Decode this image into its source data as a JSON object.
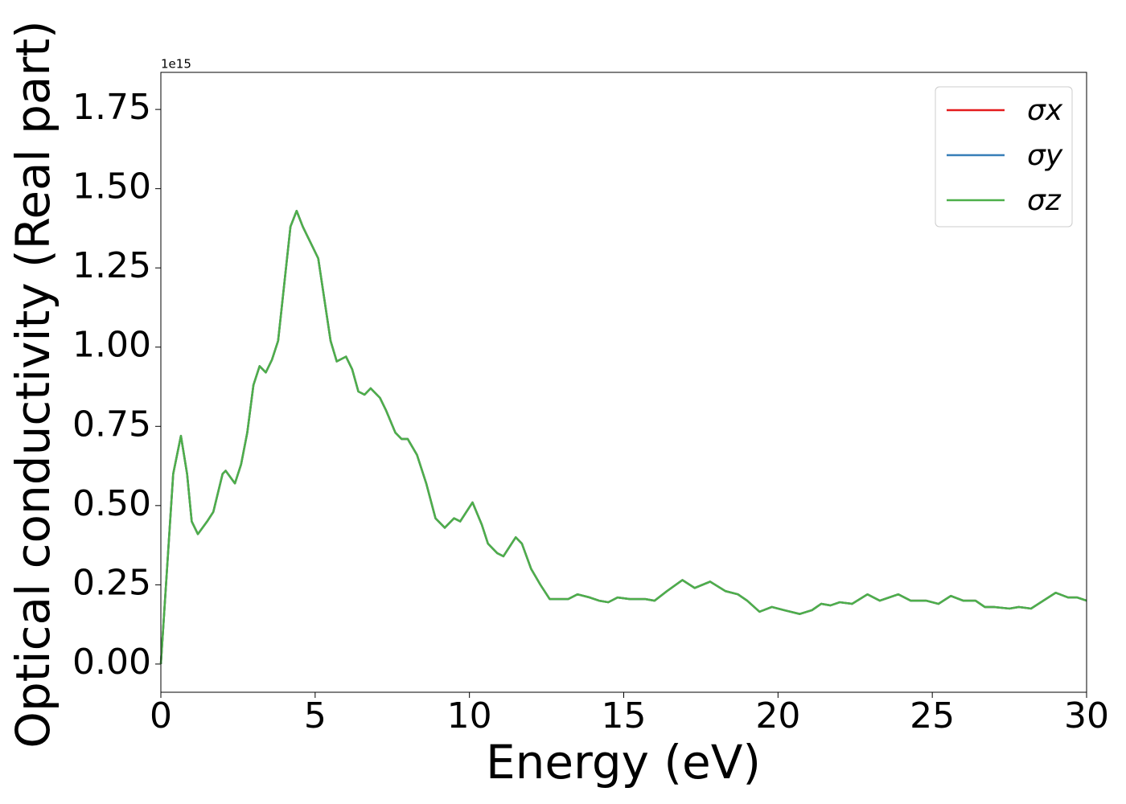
{
  "chart_data": {
    "type": "line",
    "xlabel": "Energy (eV)",
    "ylabel": "Optical conductivity (Real part)",
    "y_offset_label": "1e15",
    "x": [
      0,
      0.2,
      0.4,
      0.65,
      0.85,
      1.0,
      1.2,
      1.5,
      1.7,
      2.0,
      2.1,
      2.4,
      2.6,
      2.8,
      3.0,
      3.2,
      3.4,
      3.6,
      3.8,
      4.0,
      4.2,
      4.4,
      4.6,
      4.8,
      5.1,
      5.3,
      5.5,
      5.7,
      6.0,
      6.2,
      6.4,
      6.6,
      6.8,
      7.1,
      7.3,
      7.6,
      7.8,
      8.0,
      8.3,
      8.6,
      8.9,
      9.2,
      9.5,
      9.7,
      10.1,
      10.4,
      10.6,
      10.9,
      11.1,
      11.3,
      11.5,
      11.7,
      12.0,
      12.3,
      12.6,
      12.9,
      13.2,
      13.5,
      13.9,
      14.2,
      14.5,
      14.8,
      15.2,
      15.7,
      16.0,
      16.4,
      16.9,
      17.3,
      17.8,
      18.3,
      18.7,
      19.0,
      19.4,
      19.8,
      20.2,
      20.7,
      21.1,
      21.4,
      21.7,
      22.0,
      22.4,
      22.9,
      23.3,
      23.9,
      24.3,
      24.8,
      25.2,
      25.6,
      26.0,
      26.4,
      26.7,
      27.0,
      27.5,
      27.8,
      28.2,
      28.6,
      29.0,
      29.4,
      29.7,
      30.0
    ],
    "series": [
      {
        "name": "σx",
        "color": "#e41a1c",
        "values": [
          0,
          0.3,
          0.6,
          0.72,
          0.6,
          0.45,
          0.41,
          0.45,
          0.48,
          0.6,
          0.61,
          0.57,
          0.63,
          0.73,
          0.88,
          0.94,
          0.92,
          0.96,
          1.02,
          1.2,
          1.38,
          1.43,
          1.38,
          1.34,
          1.28,
          1.15,
          1.02,
          0.955,
          0.97,
          0.93,
          0.86,
          0.85,
          0.87,
          0.84,
          0.8,
          0.73,
          0.71,
          0.71,
          0.66,
          0.57,
          0.46,
          0.43,
          0.46,
          0.45,
          0.51,
          0.44,
          0.38,
          0.35,
          0.34,
          0.37,
          0.4,
          0.38,
          0.3,
          0.25,
          0.205,
          0.205,
          0.205,
          0.22,
          0.21,
          0.2,
          0.195,
          0.21,
          0.205,
          0.205,
          0.2,
          0.23,
          0.265,
          0.24,
          0.26,
          0.23,
          0.22,
          0.2,
          0.165,
          0.18,
          0.17,
          0.158,
          0.17,
          0.19,
          0.185,
          0.195,
          0.19,
          0.22,
          0.2,
          0.22,
          0.2,
          0.2,
          0.19,
          0.215,
          0.2,
          0.2,
          0.18,
          0.18,
          0.175,
          0.18,
          0.175,
          0.2,
          0.225,
          0.21,
          0.21,
          0.2
        ]
      },
      {
        "name": "σy",
        "color": "#377eb8",
        "values": [
          0,
          0.3,
          0.6,
          0.72,
          0.6,
          0.45,
          0.41,
          0.45,
          0.48,
          0.6,
          0.61,
          0.57,
          0.63,
          0.73,
          0.88,
          0.94,
          0.92,
          0.96,
          1.02,
          1.2,
          1.38,
          1.43,
          1.38,
          1.34,
          1.28,
          1.15,
          1.02,
          0.955,
          0.97,
          0.93,
          0.86,
          0.85,
          0.87,
          0.84,
          0.8,
          0.73,
          0.71,
          0.71,
          0.66,
          0.57,
          0.46,
          0.43,
          0.46,
          0.45,
          0.51,
          0.44,
          0.38,
          0.35,
          0.34,
          0.37,
          0.4,
          0.38,
          0.3,
          0.25,
          0.205,
          0.205,
          0.205,
          0.22,
          0.21,
          0.2,
          0.195,
          0.21,
          0.205,
          0.205,
          0.2,
          0.23,
          0.265,
          0.24,
          0.26,
          0.23,
          0.22,
          0.2,
          0.165,
          0.18,
          0.17,
          0.158,
          0.17,
          0.19,
          0.185,
          0.195,
          0.19,
          0.22,
          0.2,
          0.22,
          0.2,
          0.2,
          0.19,
          0.215,
          0.2,
          0.2,
          0.18,
          0.18,
          0.175,
          0.18,
          0.175,
          0.2,
          0.225,
          0.21,
          0.21,
          0.2
        ]
      },
      {
        "name": "σz",
        "color": "#4daf4a",
        "values": [
          0,
          0.3,
          0.6,
          0.72,
          0.6,
          0.45,
          0.41,
          0.45,
          0.48,
          0.6,
          0.61,
          0.57,
          0.63,
          0.73,
          0.88,
          0.94,
          0.92,
          0.96,
          1.02,
          1.2,
          1.38,
          1.43,
          1.38,
          1.34,
          1.28,
          1.15,
          1.02,
          0.955,
          0.97,
          0.93,
          0.86,
          0.85,
          0.87,
          0.84,
          0.8,
          0.73,
          0.71,
          0.71,
          0.66,
          0.57,
          0.46,
          0.43,
          0.46,
          0.45,
          0.51,
          0.44,
          0.38,
          0.35,
          0.34,
          0.37,
          0.4,
          0.38,
          0.3,
          0.25,
          0.205,
          0.205,
          0.205,
          0.22,
          0.21,
          0.2,
          0.195,
          0.21,
          0.205,
          0.205,
          0.2,
          0.23,
          0.265,
          0.24,
          0.26,
          0.23,
          0.22,
          0.2,
          0.165,
          0.18,
          0.17,
          0.158,
          0.17,
          0.19,
          0.185,
          0.195,
          0.19,
          0.22,
          0.2,
          0.22,
          0.2,
          0.2,
          0.19,
          0.215,
          0.2,
          0.2,
          0.18,
          0.18,
          0.175,
          0.18,
          0.175,
          0.2,
          0.225,
          0.21,
          0.21,
          0.2
        ]
      }
    ],
    "xlim": [
      0,
      30
    ],
    "xticks": [
      0,
      5,
      10,
      15,
      20,
      25,
      30
    ],
    "ylim": [
      -0.089,
      1.867
    ],
    "yticks": [
      {
        "value": 0,
        "label": "0.00"
      },
      {
        "value": 0.25,
        "label": "0.25"
      },
      {
        "value": 0.5,
        "label": "0.50"
      },
      {
        "value": 0.75,
        "label": "0.75"
      },
      {
        "value": 1,
        "label": "1.00"
      },
      {
        "value": 1.25,
        "label": "1.25"
      },
      {
        "value": 1.5,
        "label": "1.50"
      },
      {
        "value": 1.75,
        "label": "1.75"
      }
    ],
    "legend": "upper right",
    "grid": false
  }
}
